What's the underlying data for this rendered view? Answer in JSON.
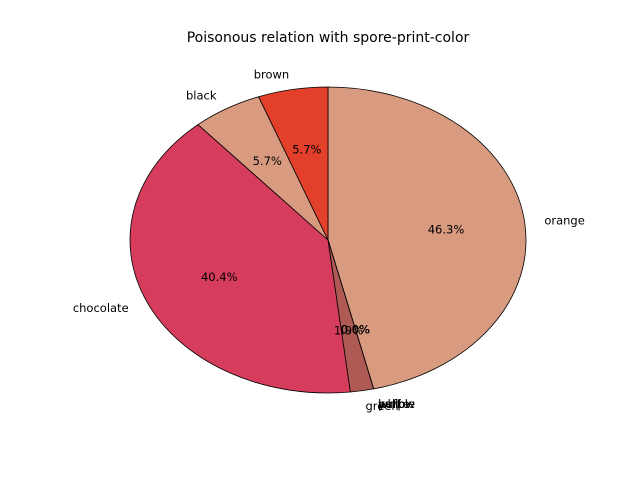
{
  "chart_data": {
    "type": "pie",
    "title": "Poisonous relation with spore-print-color",
    "categories": [
      "orange",
      "buff",
      "purple",
      "yellow",
      "white",
      "green",
      "chocolate",
      "black",
      "brown"
    ],
    "values": [
      46.3,
      0.0,
      0.0,
      0.0,
      0.0,
      1.9,
      40.4,
      5.7,
      5.7
    ],
    "pct_labels": [
      "46.3%",
      "0.0%",
      "0.0%",
      "0.0%",
      "0.0%",
      "1.9%",
      "40.4%",
      "5.7%",
      "5.7%"
    ],
    "colors": [
      "#d89b80",
      "#f5c9b5",
      "#f0b79b",
      "#eaa487",
      "#c35a55",
      "#b05a55",
      "#d63c5c",
      "#d89b80",
      "#e2402b"
    ],
    "start_angle_deg": 90,
    "direction": "clockwise"
  }
}
